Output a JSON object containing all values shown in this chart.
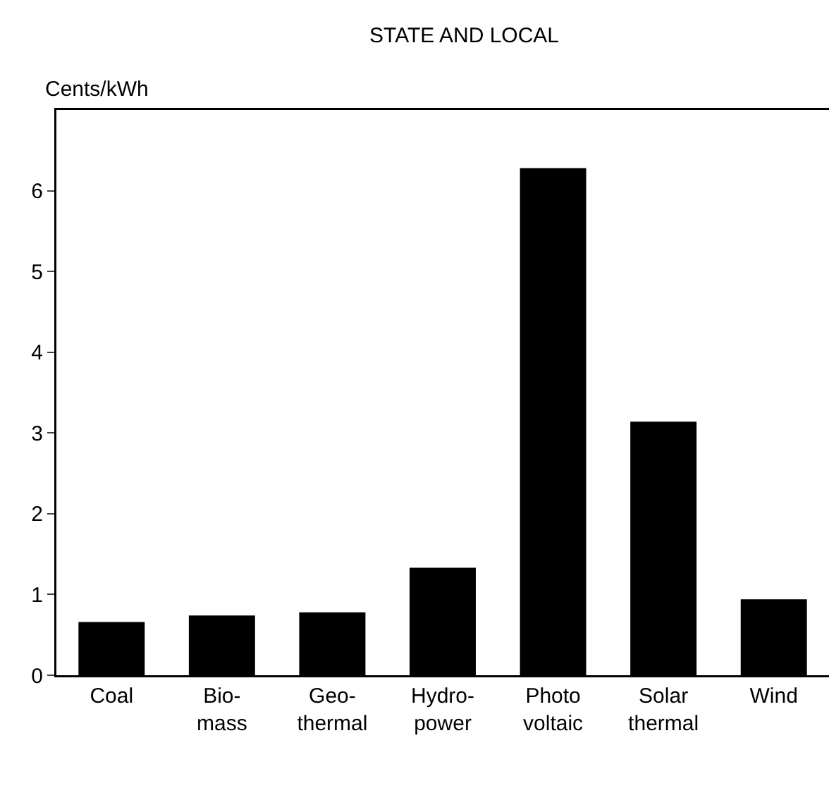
{
  "chart_data": {
    "type": "bar",
    "title": "STATE AND LOCAL",
    "ylabel": "Cents/kWh",
    "categories": [
      "Coal",
      "Bio-\nmass",
      "Geo-\nthermal",
      "Hydro-\npower",
      "Photo\nvoltaic",
      "Solar\nthermal",
      "Wind"
    ],
    "values": [
      0.66,
      0.74,
      0.78,
      1.33,
      6.28,
      3.14,
      0.94
    ],
    "color": "#000000",
    "ylim": [
      0,
      7
    ],
    "yticks": [
      0,
      1,
      2,
      3,
      4,
      5,
      6
    ]
  }
}
